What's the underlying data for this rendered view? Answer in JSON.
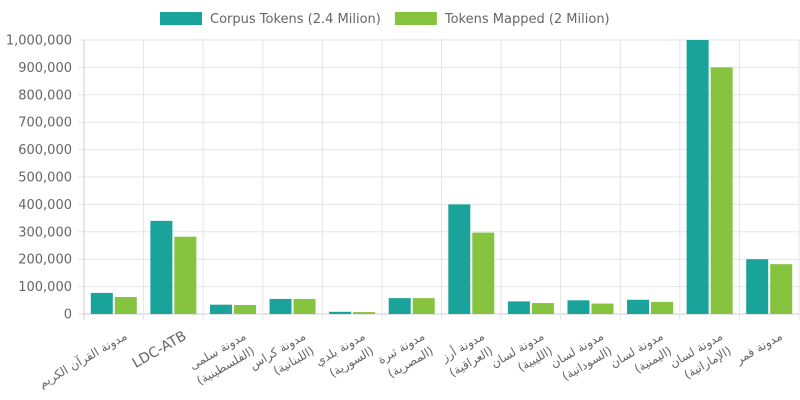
{
  "chart_data": {
    "type": "bar",
    "categories": [
      [
        "مدونة القرآن الكريم"
      ],
      [
        "LDC-ATB"
      ],
      [
        "مدونة سلمى",
        "(الفلسطينية)"
      ],
      [
        "مدونة كراس",
        "(اللبنانية)"
      ],
      [
        "مدونة بلدي",
        "(السورية)"
      ],
      [
        "مدونة ثبرة",
        "(المصرية)"
      ],
      [
        "مدونة أرز",
        "(العراقية)"
      ],
      [
        "مدونة لسان",
        "(الليبية)"
      ],
      [
        "مدونة لسان",
        "(السودانية)"
      ],
      [
        "مدونة لسان",
        "(اليمنية)"
      ],
      [
        "مدونة لسان",
        "(الإماراتية)"
      ],
      [
        "مدونة قمر"
      ]
    ],
    "series": [
      {
        "name": "Corpus Tokens (2.4 Milion)",
        "color": "#1aa39a",
        "values": [
          77000,
          340000,
          34000,
          55000,
          8000,
          58000,
          400000,
          46000,
          50000,
          52000,
          1000000,
          200000
        ]
      },
      {
        "name": "Tokens Mapped (2 Milion)",
        "color": "#86c440",
        "values": [
          62000,
          282000,
          33000,
          55000,
          7000,
          58000,
          297000,
          40000,
          38000,
          44000,
          900000,
          182000
        ]
      }
    ],
    "y_ticks": [
      "0",
      "100,000",
      "200,000",
      "300,000",
      "400,000",
      "500,000",
      "600,000",
      "700,000",
      "800,000",
      "900,000",
      "1,000,000"
    ],
    "ylim": [
      0,
      1000000
    ],
    "grid": true,
    "legend_position": "top"
  }
}
